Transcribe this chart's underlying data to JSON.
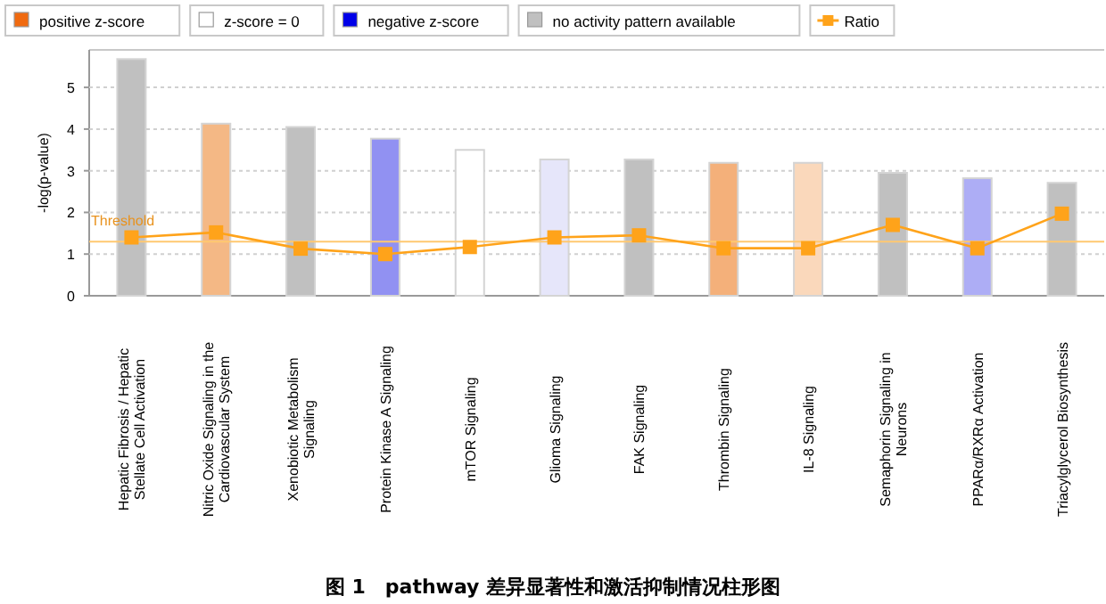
{
  "chart_data": {
    "type": "bar",
    "ylabel": "-log(p-value)",
    "categories": [
      "Hepatic Fibrosis / Hepatic Stellate Cell Activation",
      "Nitric Oxide Signaling in the Cardiovascular System",
      "Xenobiotic Metabolism Signaling",
      "Protein Kinase A Signaling",
      "mTOR Signaling",
      "Glioma Signaling",
      "FAK Signaling",
      "Thrombin Signaling",
      "IL-8 Signaling",
      "Semaphorin Signaling in Neurons",
      "PPARα/RXRα Activation",
      "Triacylglycerol Biosynthesis"
    ],
    "series": [
      {
        "name": "positive z-score",
        "color": "#f06a10",
        "values": [
          null,
          4.13,
          null,
          null,
          null,
          null,
          null,
          3.19,
          3.19,
          null,
          null,
          null
        ],
        "colors": [
          null,
          "#f4b885",
          null,
          null,
          null,
          null,
          null,
          "#f4b07a",
          "#fad8bb",
          null,
          null,
          null
        ]
      },
      {
        "name": "z-score = 0",
        "color": "#ffffff",
        "values": [
          null,
          null,
          null,
          null,
          3.5,
          null,
          null,
          null,
          null,
          null,
          null,
          null
        ],
        "colors": [
          null,
          null,
          null,
          null,
          "#ffffff",
          null,
          null,
          null,
          null,
          null,
          null,
          null
        ]
      },
      {
        "name": "negative z-score",
        "color": "#0000e8",
        "values": [
          null,
          null,
          null,
          3.77,
          null,
          3.27,
          null,
          null,
          null,
          null,
          2.82,
          null
        ],
        "colors": [
          null,
          null,
          null,
          "#9191f2",
          null,
          "#e6e6fa",
          null,
          null,
          null,
          null,
          "#adadf5",
          null
        ]
      },
      {
        "name": "no activity pattern available",
        "color": "#c0c0c0",
        "values": [
          5.68,
          null,
          4.05,
          null,
          null,
          null,
          3.27,
          null,
          null,
          2.95,
          null,
          2.71
        ],
        "colors": [
          "#c0c0c0",
          null,
          "#c0c0c0",
          null,
          null,
          null,
          "#c0c0c0",
          null,
          null,
          "#c0c0c0",
          null,
          "#c0c0c0"
        ]
      },
      {
        "name": "Ratio",
        "type": "line",
        "color": "#ffa31a",
        "marker": "square",
        "values": [
          1.4,
          1.52,
          1.13,
          1.0,
          1.17,
          1.4,
          1.45,
          1.14,
          1.14,
          1.7,
          1.14,
          1.97
        ]
      }
    ],
    "ylim": [
      0,
      5.9
    ],
    "yticks": [
      0,
      1,
      2,
      3,
      4,
      5
    ],
    "grid": "y",
    "legend": "top",
    "ref_lines": [
      {
        "axis": "y",
        "value": 1.3,
        "label": "Threshold",
        "color": "#ffc870"
      }
    ],
    "annotations": [
      "图 1　pathway 差异显著性和激活抑制情况柱形图"
    ]
  }
}
